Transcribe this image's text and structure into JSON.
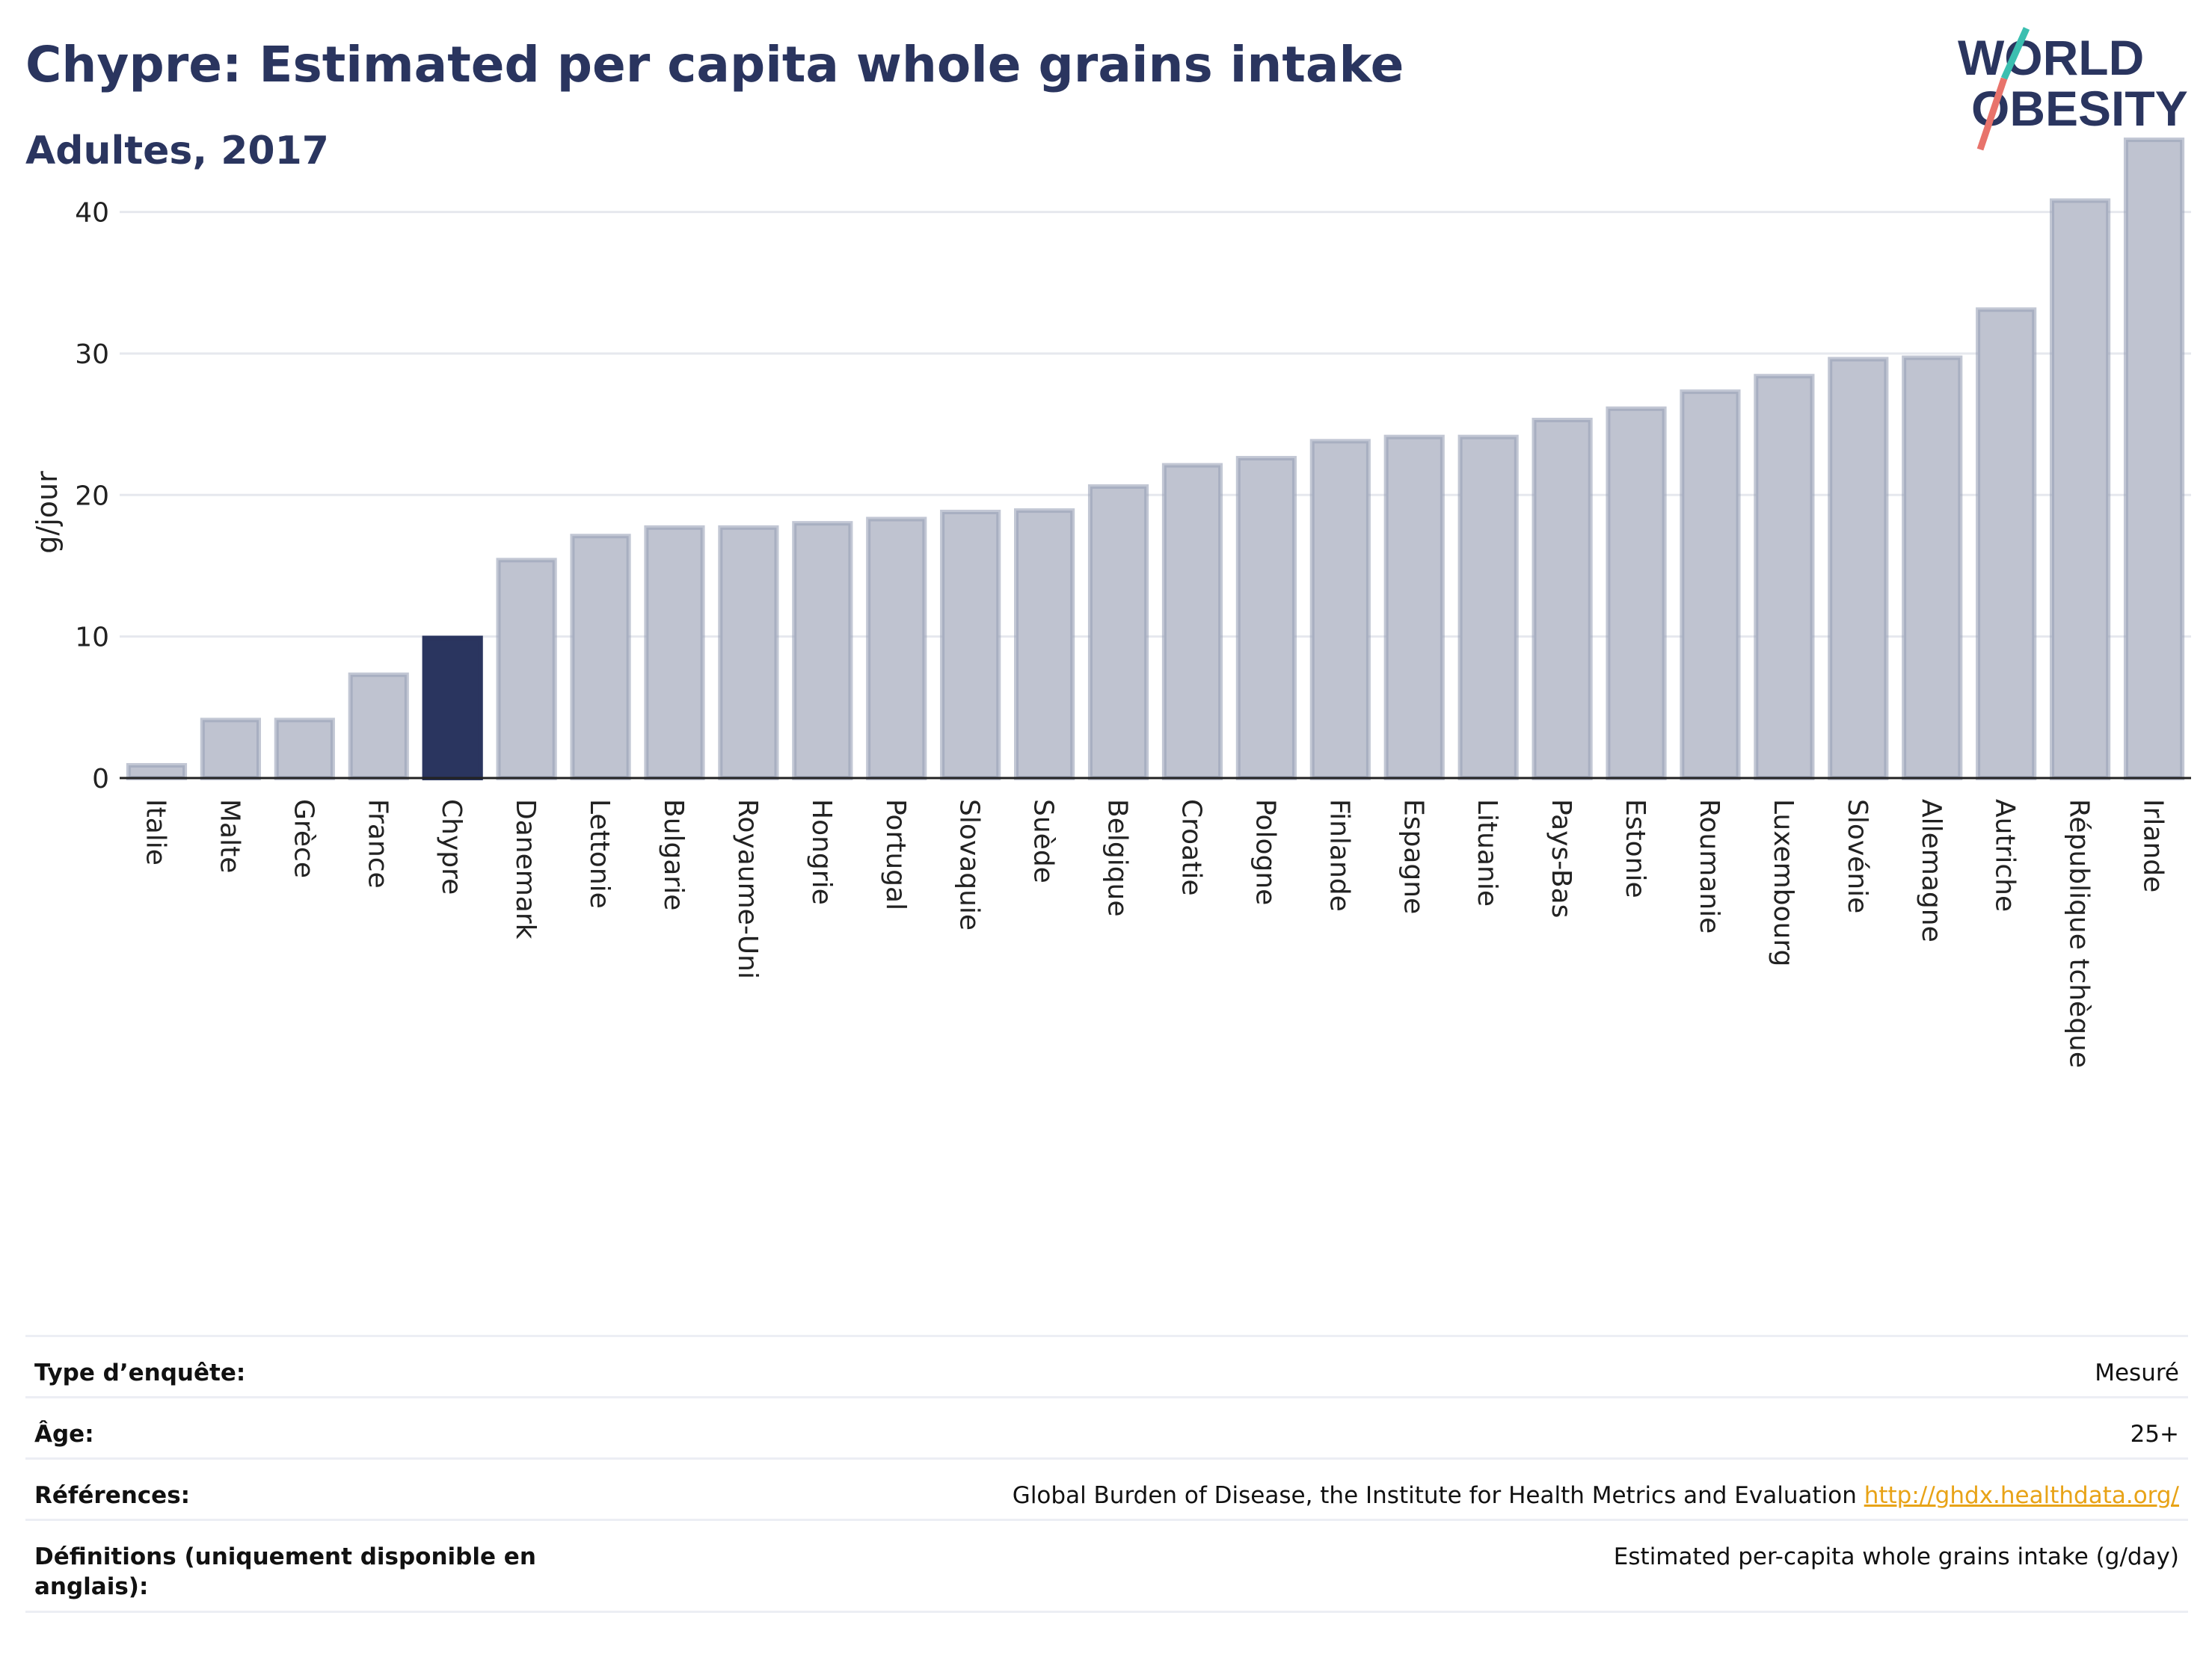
{
  "header": {
    "title": "Chypre: Estimated per capita whole grains intake",
    "subtitle": "Adultes, 2017"
  },
  "logo": {
    "line1": "WORLD",
    "line2": "OBESITY"
  },
  "colors": {
    "bar": "#bfc3d0",
    "bar_border": "#9aa1b8",
    "highlight": "#2a355f",
    "grid": "#e6e8ee",
    "axis": "#222222"
  },
  "chart_data": {
    "type": "bar",
    "ylabel": "g/jour",
    "ylim": [
      0,
      46
    ],
    "yticks": [
      0,
      10,
      20,
      30,
      40
    ],
    "highlight": "Chypre",
    "categories": [
      "Italie",
      "Malte",
      "Grèce",
      "France",
      "Chypre",
      "Danemark",
      "Lettonie",
      "Bulgarie",
      "Royaume-Uni",
      "Hongrie",
      "Portugal",
      "Slovaquie",
      "Suède",
      "Belgique",
      "Croatie",
      "Pologne",
      "Finlande",
      "Espagne",
      "Lituanie",
      "Pays-Bas",
      "Estonie",
      "Roumanie",
      "Luxembourg",
      "Slovénie",
      "Allemagne",
      "Autriche",
      "République tchèque",
      "Irlande"
    ],
    "values": [
      0.9,
      4.1,
      4.1,
      7.3,
      9.9,
      15.4,
      17.1,
      17.7,
      17.7,
      18.0,
      18.3,
      18.8,
      18.9,
      20.6,
      22.1,
      22.6,
      23.8,
      24.1,
      24.1,
      25.3,
      26.1,
      27.3,
      28.4,
      29.6,
      29.7,
      33.1,
      40.8,
      45.1
    ]
  },
  "info": [
    {
      "label": "Type d’enquête:",
      "value": "Mesuré"
    },
    {
      "label": "Âge:",
      "value": "25+"
    },
    {
      "label": "Références:",
      "value": "Global Burden of Disease, the Institute for Health Metrics and Evaluation",
      "link": "http://ghdx.healthdata.org/"
    },
    {
      "label": "Définitions (uniquement disponible en anglais):",
      "value": "Estimated per-capita whole grains intake (g/day)"
    }
  ]
}
